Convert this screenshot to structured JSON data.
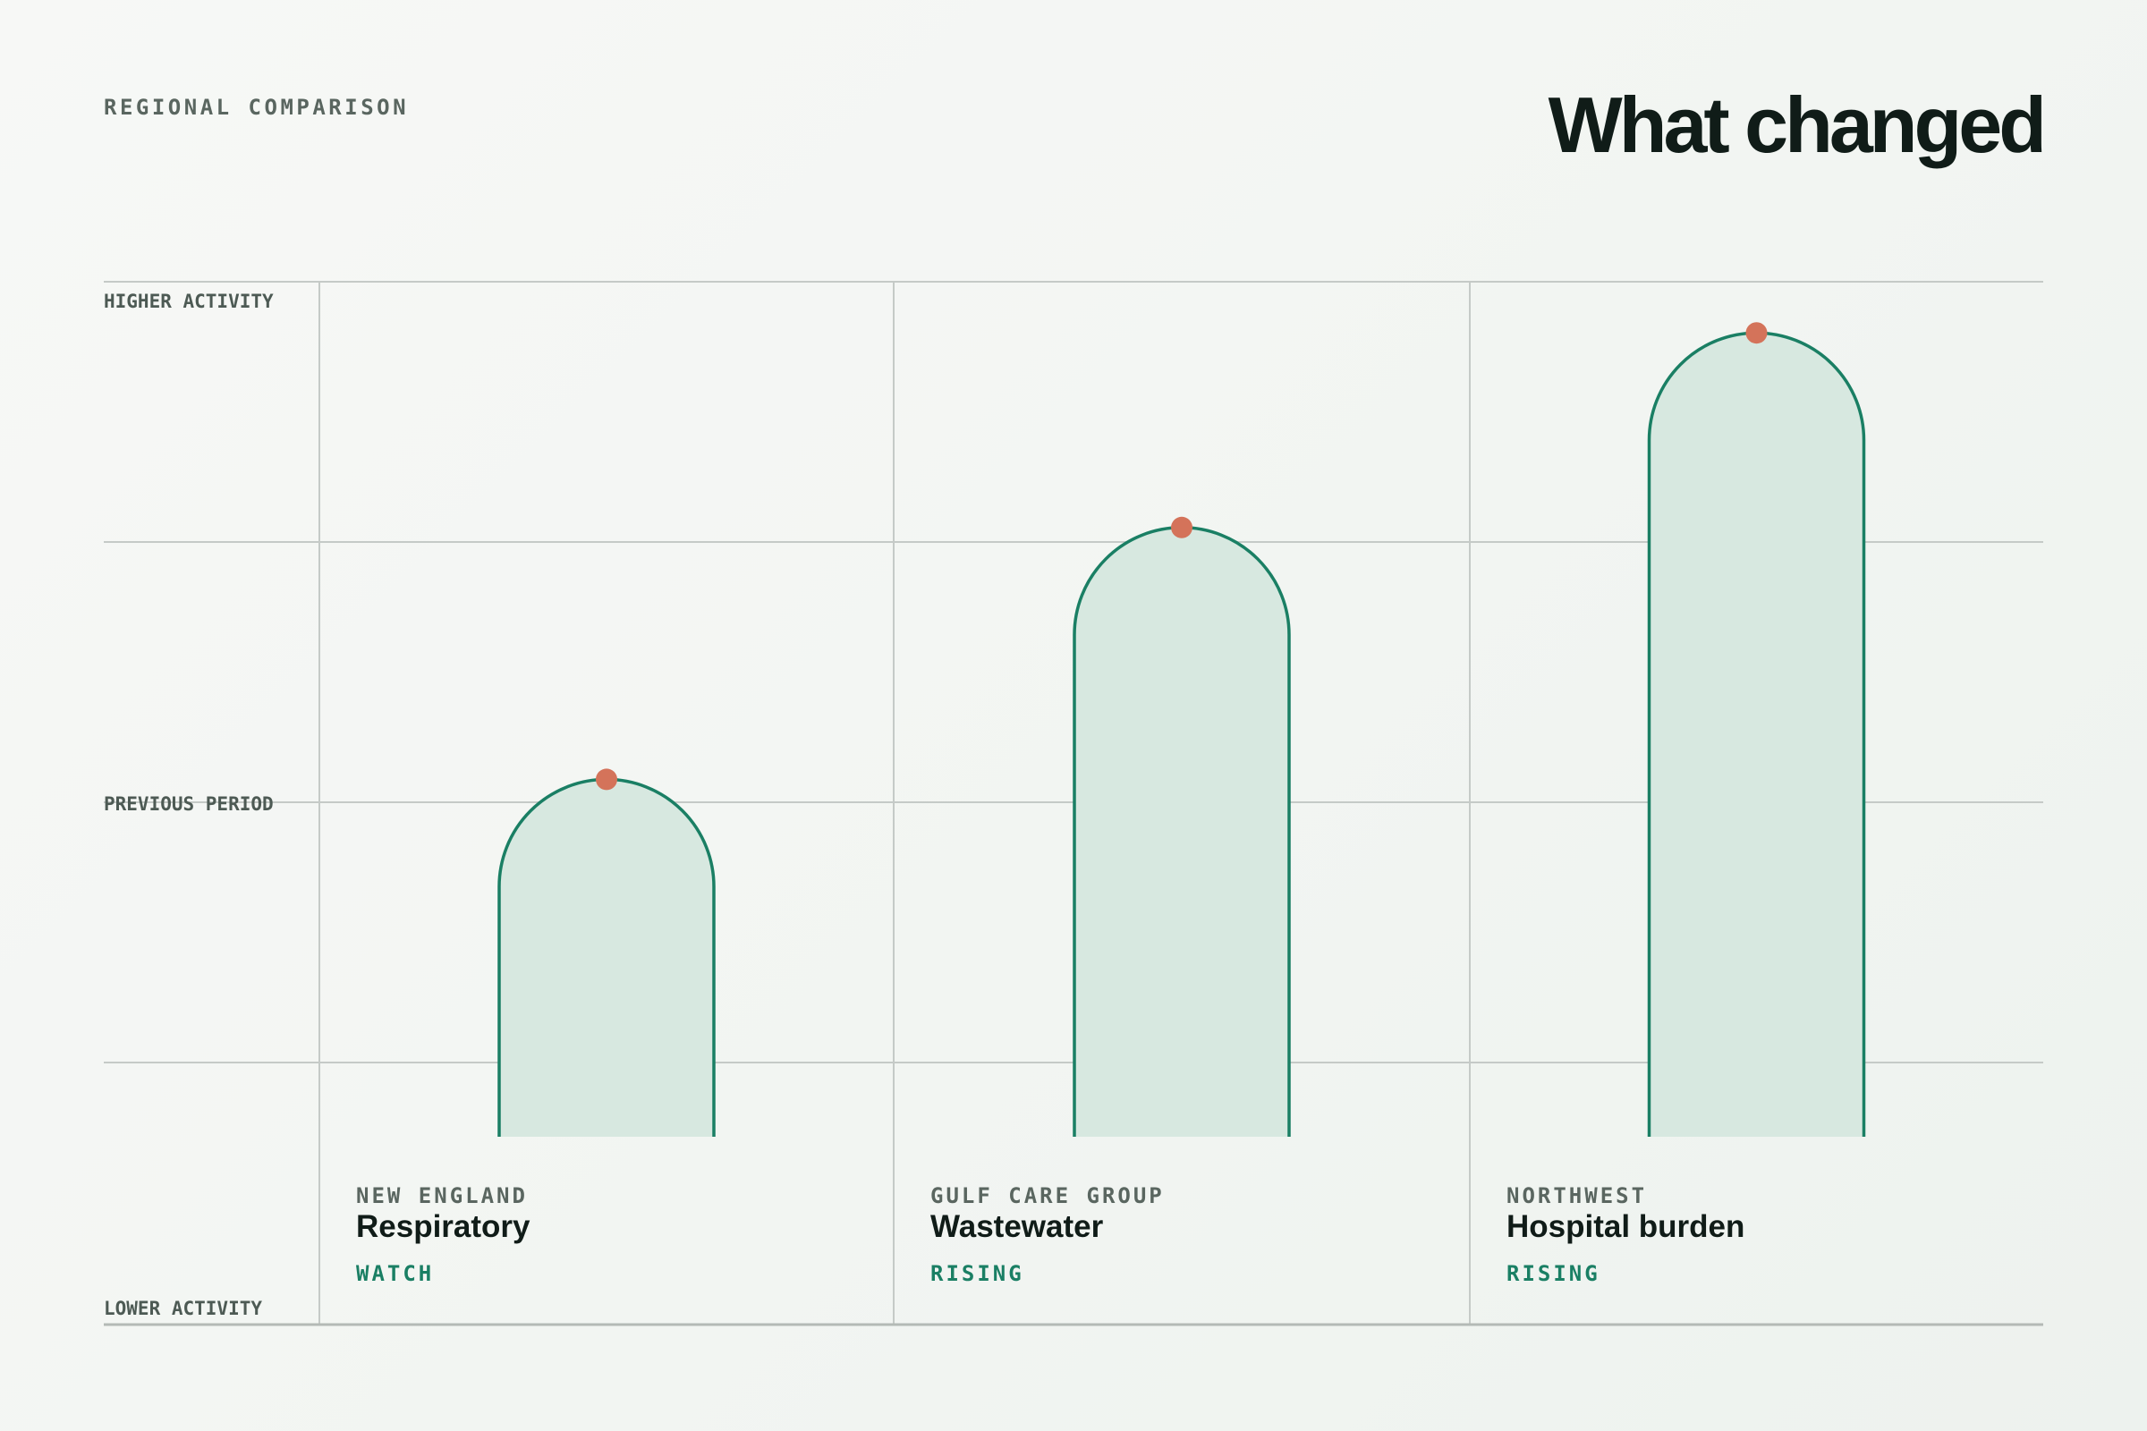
{
  "header": {
    "eyebrow": "REGIONAL COMPARISON",
    "title": "What changed"
  },
  "colors": {
    "bar_stroke": "#1a7f64",
    "bar_fill": "#d7e8e0",
    "marker": "#d4735a",
    "grid": "#c5cac7",
    "status": "#1a7f64"
  },
  "chart_data": {
    "type": "bar",
    "title": "What changed",
    "y_axis_labels": {
      "top": "HIGHER ACTIVITY",
      "middle": "PREVIOUS PERIOD",
      "bottom": "LOWER ACTIVITY"
    },
    "ylim": [
      0,
      100
    ],
    "reference_level": 50,
    "grid": true,
    "categories": [
      {
        "region": "NEW ENGLAND",
        "metric": "Respiratory",
        "status": "WATCH",
        "value": 52
      },
      {
        "region": "GULF CARE GROUP",
        "metric": "Wastewater",
        "status": "RISING",
        "value": 74
      },
      {
        "region": "NORTHWEST",
        "metric": "Hospital burden",
        "status": "RISING",
        "value": 91
      }
    ]
  }
}
